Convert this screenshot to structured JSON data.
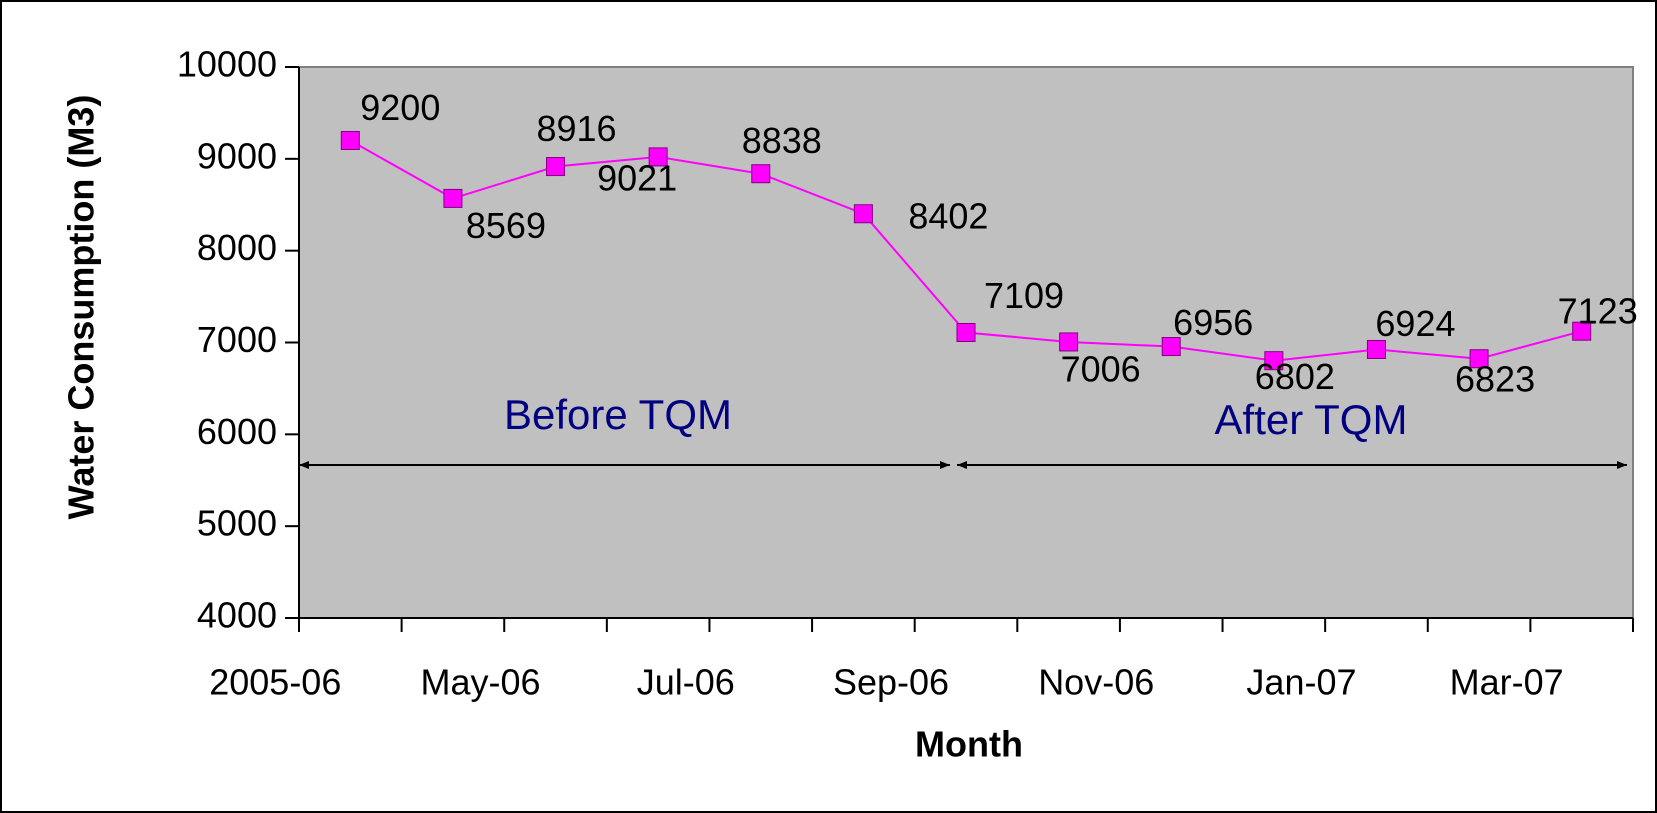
{
  "chart_data": {
    "type": "line",
    "x_label": "Month",
    "y_label": "Water Consumption (M3)",
    "categories": [
      "2005-06",
      null,
      "May-06",
      null,
      "Jul-06",
      null,
      "Sep-06",
      null,
      "Nov-06",
      null,
      "Jan-07",
      null,
      "Mar-07"
    ],
    "series": [
      {
        "name": "Water Consumption",
        "color": "#ff00ff",
        "values": [
          9200,
          8569,
          8916,
          9021,
          8838,
          8402,
          7109,
          7006,
          6956,
          6802,
          6924,
          6823,
          7123
        ]
      }
    ],
    "ylim": [
      4000,
      10000
    ],
    "yticks": [
      4000,
      5000,
      6000,
      7000,
      8000,
      9000,
      10000
    ],
    "annotations": [
      "Before TQM",
      "After TQM"
    ],
    "grid": false
  }
}
